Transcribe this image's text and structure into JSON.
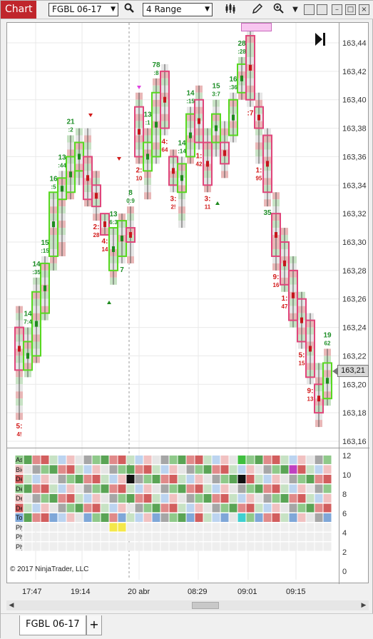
{
  "toolbar": {
    "chart_button": "Chart",
    "instrument": "FGBL 06-17",
    "bar_type": "4 Range",
    "icons": [
      "search-icon",
      "chart-style-icon",
      "pencil-icon",
      "zoom-icon",
      "chevron-down-icon"
    ]
  },
  "price_axis": {
    "labels": [
      "163,44",
      "163,42",
      "163,40",
      "163,38",
      "163,36",
      "163,34",
      "163,32",
      "163,30",
      "163,28",
      "163,26",
      "163,24",
      "163,22",
      "163,20",
      "163,18",
      "163,16"
    ],
    "current_price": "163,21"
  },
  "stats_axis": {
    "labels": [
      "12",
      "10",
      "8",
      "6",
      "4",
      "2",
      "0"
    ]
  },
  "stats_rows": [
    "Asl",
    "Bid",
    "Del",
    "Del",
    "Del",
    "Del",
    "Tot",
    "Ply",
    "Ply",
    "Ply"
  ],
  "time_axis": {
    "labels": [
      "17:47",
      "19:14",
      "20 abr",
      "08:29",
      "09:01",
      "09:15"
    ]
  },
  "copyright": "© 2017 NinjaTrader, LLC",
  "bottom_tab": "FGBL 06-17",
  "add_tab": "+",
  "colors": {
    "up_outline": "#57d820",
    "down_outline": "#e0457b",
    "chart_tab": "#c0262c"
  },
  "chart_data": {
    "type": "footprint",
    "y_range": [
      163.155,
      163.45
    ],
    "bars": [
      {
        "open": 163.21,
        "close": 163.24,
        "high": 163.255,
        "low": 163.175,
        "dir": "down"
      },
      {
        "open": 163.21,
        "close": 163.23,
        "high": 163.24,
        "low": 163.205,
        "dir": "up"
      },
      {
        "open": 163.22,
        "close": 163.265,
        "high": 163.275,
        "low": 163.215,
        "dir": "up"
      },
      {
        "open": 163.25,
        "close": 163.285,
        "high": 163.29,
        "low": 163.245,
        "dir": "up"
      },
      {
        "open": 163.29,
        "close": 163.335,
        "high": 163.335,
        "low": 163.28,
        "dir": "up"
      },
      {
        "open": 163.33,
        "close": 163.345,
        "high": 163.35,
        "low": 163.29,
        "dir": "up"
      },
      {
        "open": 163.335,
        "close": 163.36,
        "high": 163.375,
        "low": 163.33,
        "dir": "up"
      },
      {
        "open": 163.35,
        "close": 163.37,
        "high": 163.38,
        "low": 163.34,
        "dir": "up"
      },
      {
        "open": 163.36,
        "close": 163.33,
        "high": 163.38,
        "low": 163.325,
        "dir": "down"
      },
      {
        "open": 163.34,
        "close": 163.325,
        "high": 163.35,
        "low": 163.315,
        "dir": "down"
      },
      {
        "open": 163.32,
        "close": 163.305,
        "high": 163.32,
        "low": 163.305,
        "dir": "down"
      },
      {
        "open": 163.28,
        "close": 163.31,
        "high": 163.31,
        "low": 163.27,
        "dir": "up"
      },
      {
        "open": 163.29,
        "close": 163.315,
        "high": 163.32,
        "low": 163.285,
        "dir": "up"
      },
      {
        "open": 163.3,
        "close": 163.31,
        "high": 163.325,
        "low": 163.285,
        "dir": "down"
      },
      {
        "open": 163.395,
        "close": 163.36,
        "high": 163.405,
        "low": 163.355,
        "dir": "down"
      },
      {
        "open": 163.35,
        "close": 163.37,
        "high": 163.38,
        "low": 163.33,
        "dir": "up"
      },
      {
        "open": 163.36,
        "close": 163.405,
        "high": 163.415,
        "low": 163.355,
        "dir": "up"
      },
      {
        "open": 163.42,
        "close": 163.38,
        "high": 163.425,
        "low": 163.375,
        "dir": "down"
      },
      {
        "open": 163.36,
        "close": 163.34,
        "high": 163.365,
        "low": 163.335,
        "dir": "down"
      },
      {
        "open": 163.335,
        "close": 163.355,
        "high": 163.36,
        "low": 163.31,
        "dir": "up"
      },
      {
        "open": 163.36,
        "close": 163.39,
        "high": 163.395,
        "low": 163.355,
        "dir": "up"
      },
      {
        "open": 163.4,
        "close": 163.37,
        "high": 163.41,
        "low": 163.365,
        "dir": "down"
      },
      {
        "open": 163.37,
        "close": 163.34,
        "high": 163.38,
        "low": 163.335,
        "dir": "down"
      },
      {
        "open": 163.37,
        "close": 163.39,
        "high": 163.4,
        "low": 163.36,
        "dir": "up"
      },
      {
        "open": 163.37,
        "close": 163.355,
        "high": 163.385,
        "low": 163.345,
        "dir": "down"
      },
      {
        "open": 163.375,
        "close": 163.4,
        "high": 163.405,
        "low": 163.37,
        "dir": "up"
      },
      {
        "open": 163.405,
        "close": 163.425,
        "high": 163.43,
        "low": 163.4,
        "dir": "up"
      },
      {
        "open": 163.445,
        "close": 163.4,
        "high": 163.45,
        "low": 163.395,
        "dir": "down"
      },
      {
        "open": 163.395,
        "close": 163.38,
        "high": 163.405,
        "low": 163.355,
        "dir": "down"
      },
      {
        "open": 163.375,
        "close": 163.335,
        "high": 163.38,
        "low": 163.325,
        "dir": "down"
      },
      {
        "open": 163.32,
        "close": 163.29,
        "high": 163.335,
        "low": 163.28,
        "dir": "down"
      },
      {
        "open": 163.3,
        "close": 163.27,
        "high": 163.31,
        "low": 163.265,
        "dir": "down"
      },
      {
        "open": 163.28,
        "close": 163.245,
        "high": 163.29,
        "low": 163.24,
        "dir": "down"
      },
      {
        "open": 163.26,
        "close": 163.23,
        "high": 163.265,
        "low": 163.225,
        "dir": "down"
      },
      {
        "open": 163.245,
        "close": 163.205,
        "high": 163.25,
        "low": 163.2,
        "dir": "down"
      },
      {
        "open": 163.2,
        "close": 163.18,
        "high": 163.215,
        "low": 163.17,
        "dir": "down"
      },
      {
        "open": 163.19,
        "close": 163.215,
        "high": 163.225,
        "low": 163.185,
        "dir": "up"
      }
    ],
    "bar_labels": [
      {
        "bar": 0,
        "text": "5: 4!",
        "pos": "below",
        "color": "#d21919"
      },
      {
        "bar": 1,
        "text": "14 7:4",
        "pos": "above",
        "color": "#1f8f28"
      },
      {
        "bar": 2,
        "text": "14 :35",
        "pos": "above",
        "color": "#1f8f28"
      },
      {
        "bar": 3,
        "text": "15 :15",
        "pos": "above",
        "color": "#1f8f28"
      },
      {
        "bar": 4,
        "text": "16 :5",
        "pos": "above",
        "color": "#1f8f28"
      },
      {
        "bar": 5,
        "text": "13 :44",
        "pos": "above",
        "color": "#1f8f28"
      },
      {
        "bar": 6,
        "text": "21 :2",
        "pos": "above",
        "color": "#1f8f28"
      },
      {
        "bar": 9,
        "text": "2: 28",
        "pos": "below",
        "color": "#d21919"
      },
      {
        "bar": 10,
        "text": "4: 14",
        "pos": "below",
        "color": "#d21919"
      },
      {
        "bar": 11,
        "text": "13 6:3",
        "pos": "above",
        "color": "#1f8f28"
      },
      {
        "bar": 12,
        "text": "7",
        "pos": "below",
        "color": "#1f8f28"
      },
      {
        "bar": 13,
        "text": "8 0:9",
        "pos": "above",
        "color": "#1f8f28"
      },
      {
        "bar": 14,
        "text": "2: 10",
        "pos": "below",
        "color": "#d21919"
      },
      {
        "bar": 15,
        "text": "13 :1",
        "pos": "above",
        "color": "#1f8f28"
      },
      {
        "bar": 16,
        "text": "78 :8",
        "pos": "above",
        "color": "#1f8f28"
      },
      {
        "bar": 17,
        "text": "4: 64",
        "pos": "below",
        "color": "#d21919"
      },
      {
        "bar": 18,
        "text": "3: 2!",
        "pos": "below",
        "color": "#d21919"
      },
      {
        "bar": 19,
        "text": "14 :14",
        "pos": "above",
        "color": "#1f8f28"
      },
      {
        "bar": 20,
        "text": "14 :15",
        "pos": "above",
        "color": "#1f8f28"
      },
      {
        "bar": 21,
        "text": "1: 42",
        "pos": "below",
        "color": "#d21919"
      },
      {
        "bar": 22,
        "text": "3: 11",
        "pos": "below",
        "color": "#d21919"
      },
      {
        "bar": 23,
        "text": "15 3:7",
        "pos": "above",
        "color": "#1f8f28"
      },
      {
        "bar": 25,
        "text": "16 :36",
        "pos": "above",
        "color": "#1f8f28"
      },
      {
        "bar": 26,
        "text": "28 :28",
        "pos": "above",
        "color": "#1f8f28"
      },
      {
        "bar": 27,
        "text": ":7 ",
        "pos": "below",
        "color": "#d21919"
      },
      {
        "bar": 28,
        "text": "1: 95",
        "pos": "below",
        "color": "#d21919"
      },
      {
        "bar": 29,
        "text": "35",
        "pos": "below",
        "color": "#1f8f28"
      },
      {
        "bar": 30,
        "text": "9: 16",
        "pos": "below",
        "color": "#d21919"
      },
      {
        "bar": 31,
        "text": "1: 47",
        "pos": "below",
        "color": "#d21919"
      },
      {
        "bar": 33,
        "text": "5: 15",
        "pos": "below",
        "color": "#d21919"
      },
      {
        "bar": 34,
        "text": "9: 13",
        "pos": "below",
        "color": "#d21919"
      },
      {
        "bar": 36,
        "text": "19 62",
        "pos": "above",
        "color": "#1f8f28"
      }
    ]
  }
}
